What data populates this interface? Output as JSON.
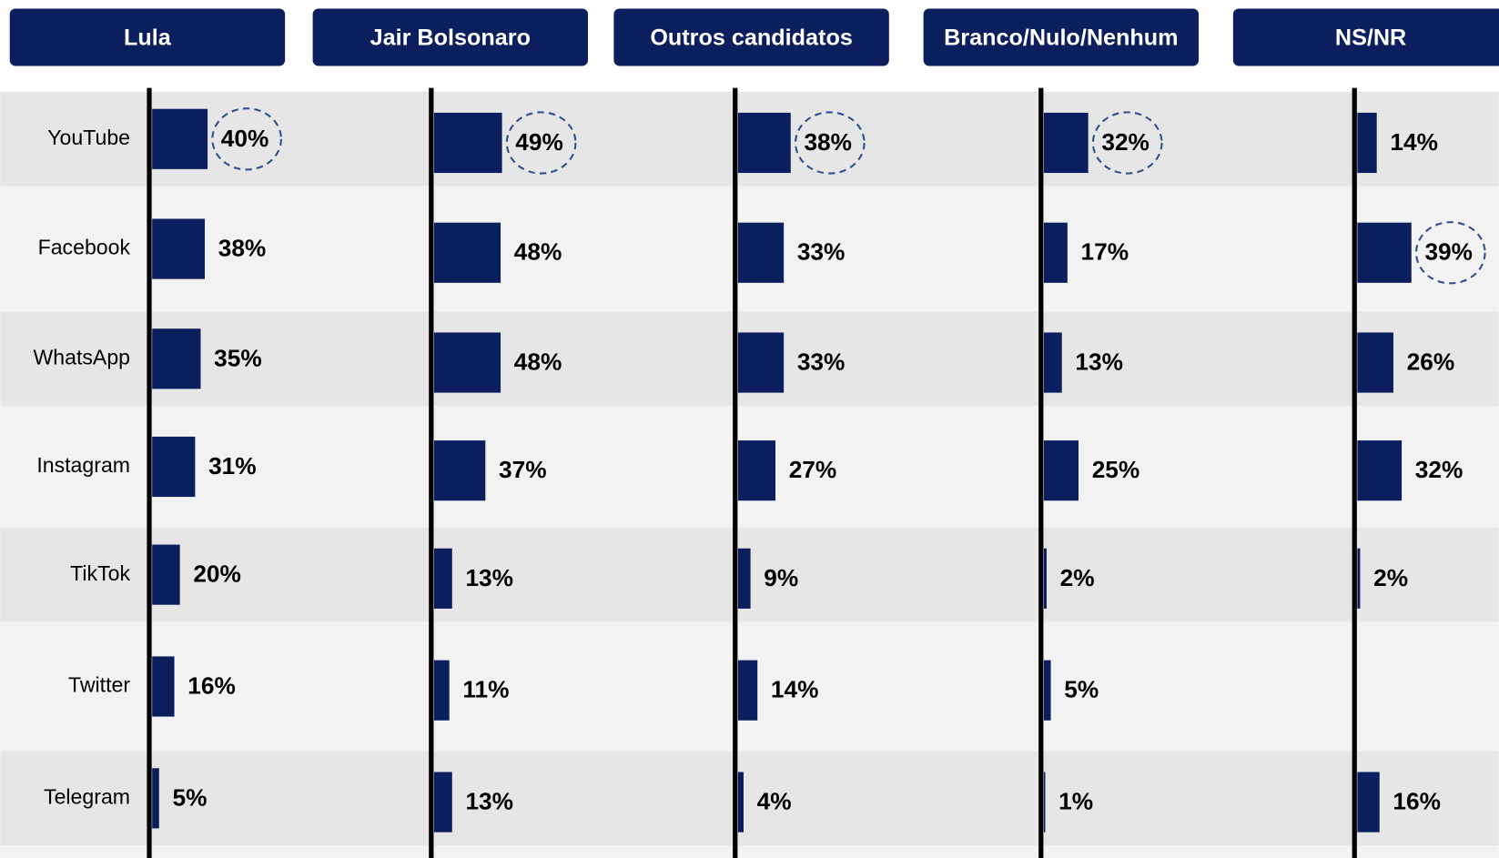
{
  "chart_data": {
    "type": "bar",
    "categories": [
      "YouTube",
      "Facebook",
      "WhatsApp",
      "Instagram",
      "TikTok",
      "Twitter",
      "Telegram"
    ],
    "series": [
      {
        "name": "Lula",
        "color": "#0b1f5e",
        "values": [
          40,
          38,
          35,
          31,
          20,
          16,
          5
        ],
        "value_labels": [
          "40%",
          "38%",
          "35%",
          "31%",
          "20%",
          "16%",
          "5%"
        ],
        "highlight": 0
      },
      {
        "name": "Jair Bolsonaro",
        "color": "#0b1f5e",
        "values": [
          49,
          48,
          48,
          37,
          13,
          11,
          13
        ],
        "value_labels": [
          "49%",
          "48%",
          "48%",
          "37%",
          "13%",
          "11%",
          "13%"
        ],
        "highlight": 0
      },
      {
        "name": "Outros candidatos",
        "color": "#0b1f5e",
        "values": [
          38,
          33,
          33,
          27,
          9,
          14,
          4
        ],
        "value_labels": [
          "38%",
          "33%",
          "33%",
          "27%",
          "9%",
          "14%",
          "4%"
        ],
        "highlight": 0
      },
      {
        "name": "Branco/Nulo/Nenhum",
        "color": "#0b1f5e",
        "values": [
          32,
          17,
          13,
          25,
          2,
          5,
          1
        ],
        "value_labels": [
          "32%",
          "17%",
          "13%",
          "25%",
          "2%",
          "5%",
          "1%"
        ],
        "highlight": 0
      },
      {
        "name": "NS/NR",
        "color": "#0b1f5e",
        "values": [
          14,
          39,
          26,
          32,
          2,
          null,
          16
        ],
        "value_labels": [
          "14%",
          "39%",
          "26%",
          "32%",
          "2%",
          null,
          "16%"
        ],
        "highlight": 1
      }
    ]
  }
}
